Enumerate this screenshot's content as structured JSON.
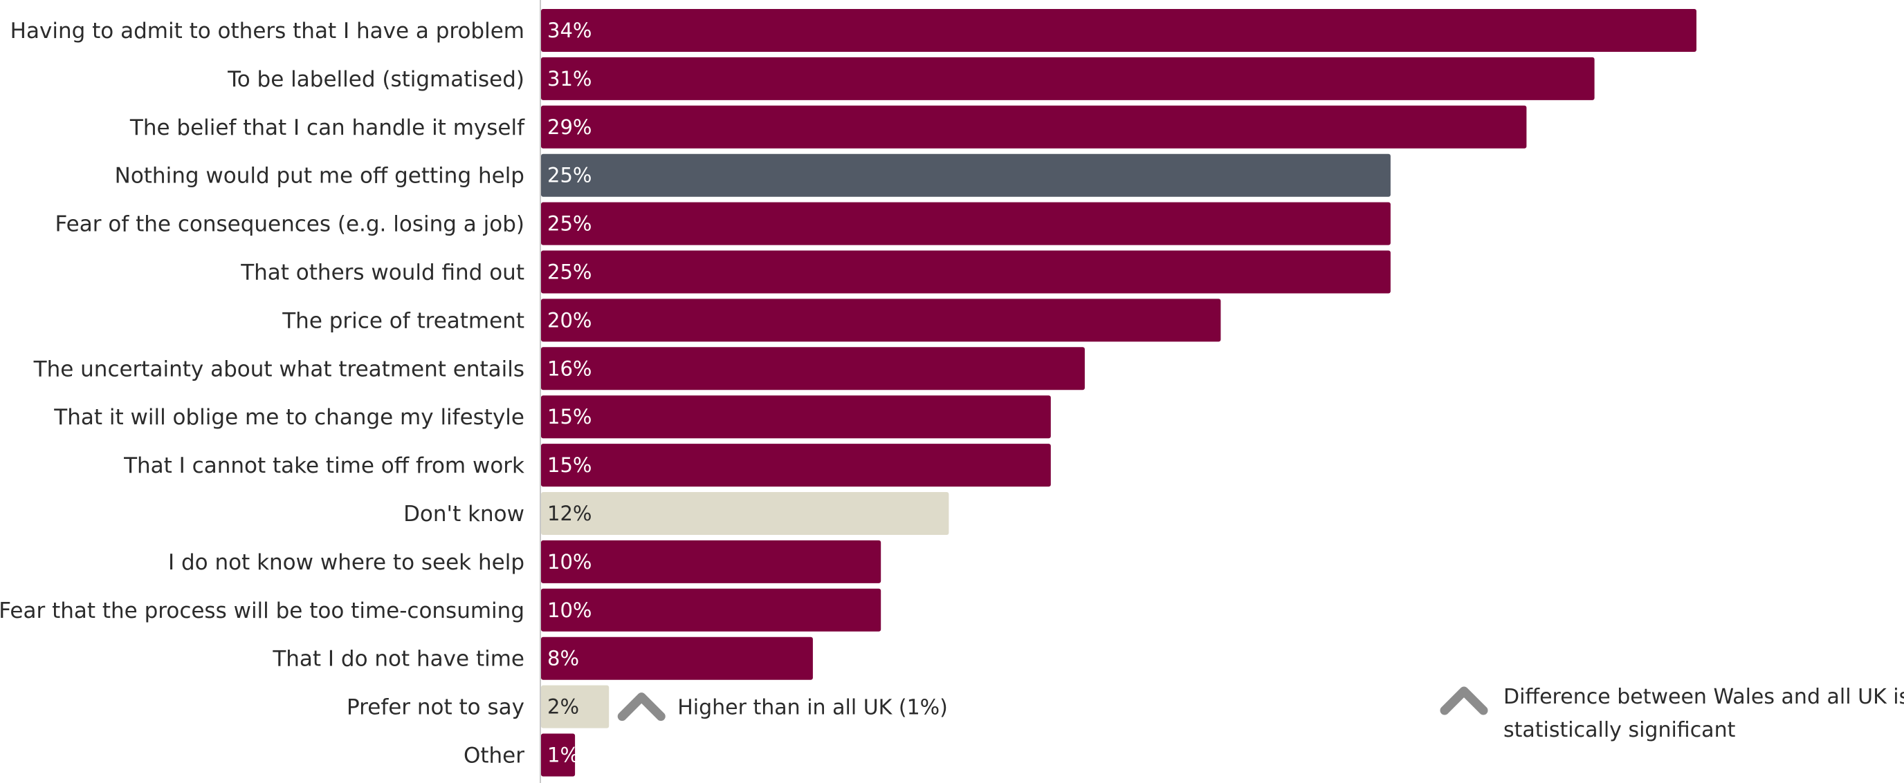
{
  "chart_data": {
    "type": "bar",
    "orientation": "horizontal",
    "categories": [
      "Having to admit to others that I have a problem",
      "To be labelled (stigmatised)",
      "The belief that I can handle it myself",
      "Nothing would put me off getting help",
      "Fear of the consequences (e.g. losing a job)",
      "That others would find out",
      "The price of treatment",
      "The uncertainty about what treatment entails",
      "That it will oblige me to change my lifestyle",
      "That I cannot take time off from work",
      "Don't know",
      "I do not know where to seek help",
      "Fear that the process will be too time-consuming",
      "That I do not have time",
      "Prefer not to say",
      "Other"
    ],
    "values": [
      34,
      31,
      29,
      25,
      25,
      25,
      20,
      16,
      15,
      15,
      12,
      10,
      10,
      8,
      2,
      1
    ],
    "value_labels": [
      "34%",
      "31%",
      "29%",
      "25%",
      "25%",
      "25%",
      "20%",
      "16%",
      "15%",
      "15%",
      "12%",
      "10%",
      "10%",
      "8%",
      "2%",
      "1%"
    ],
    "bar_colors": [
      "#7d003c",
      "#7d003c",
      "#7d003c",
      "#525a66",
      "#7d003c",
      "#7d003c",
      "#7d003c",
      "#7d003c",
      "#7d003c",
      "#7d003c",
      "#dedbca",
      "#7d003c",
      "#7d003c",
      "#7d003c",
      "#dedbca",
      "#7d003c"
    ],
    "label_colors": [
      "#ffffff",
      "#ffffff",
      "#ffffff",
      "#ffffff",
      "#ffffff",
      "#ffffff",
      "#ffffff",
      "#ffffff",
      "#ffffff",
      "#ffffff",
      "#2b2b2b",
      "#ffffff",
      "#ffffff",
      "#ffffff",
      "#2b2b2b",
      "#ffffff"
    ],
    "xlim": [
      0,
      34
    ],
    "grid": false,
    "annotations": [
      {
        "category": "Prefer not to say",
        "icon": "chevron-up-icon",
        "text": "Higher than in all UK (1%)"
      }
    ]
  },
  "legend": {
    "icon": "chevron-up-icon",
    "lines": [
      "Difference between Wales and all UK is",
      "statistically significant"
    ]
  },
  "colors": {
    "primary": "#7d003c",
    "highlight": "#525a66",
    "neutral": "#dedbca",
    "icon": "#8c8c8c",
    "axis": "#c8c8c8"
  }
}
